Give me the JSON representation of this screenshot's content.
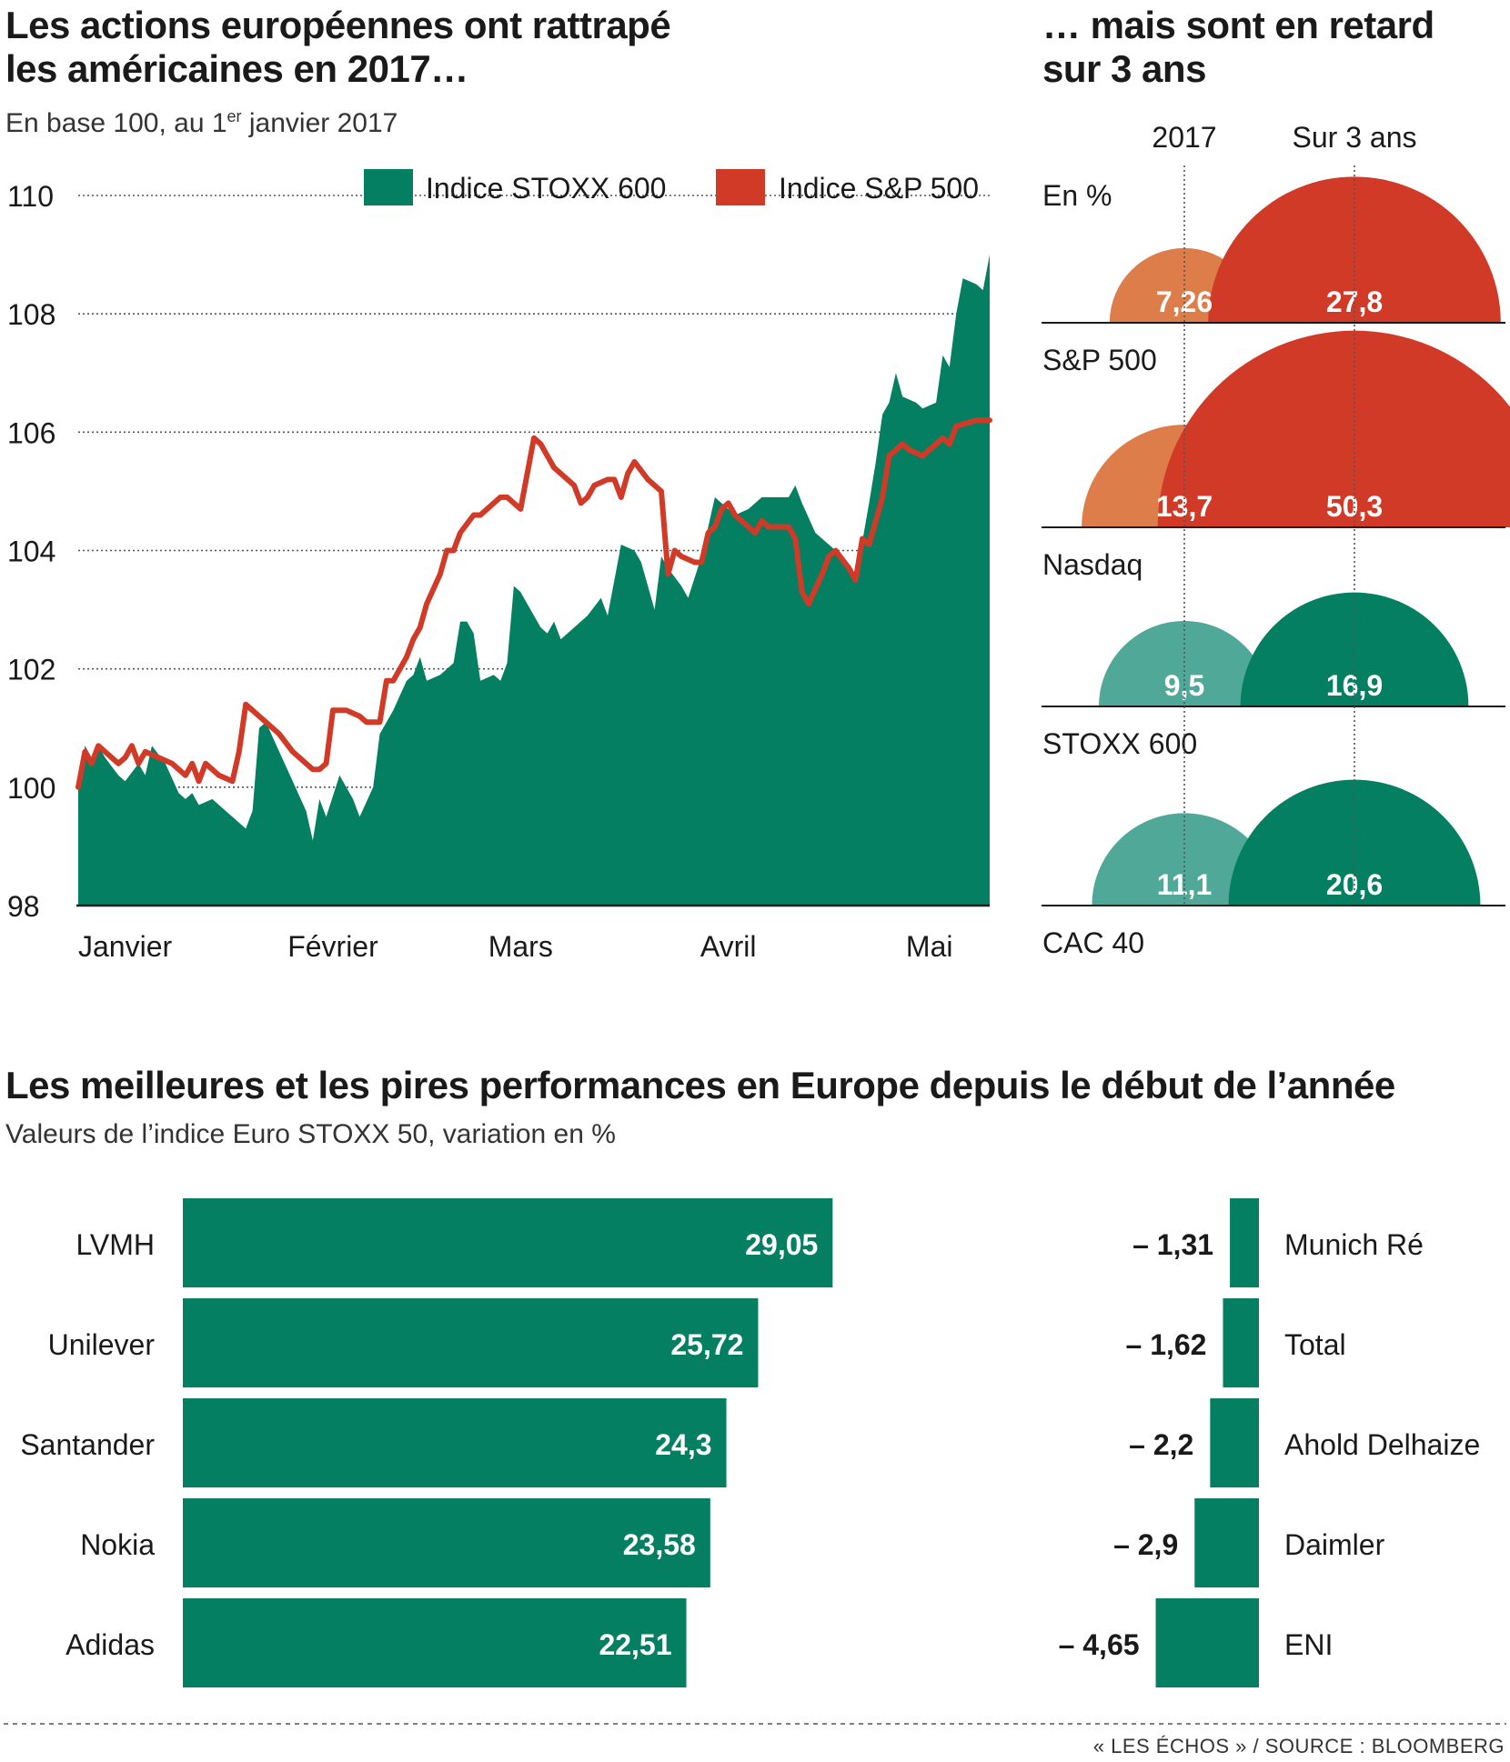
{
  "source": "« LES ÉCHOS » / SOURCE : BLOOMBERG",
  "colors": {
    "green": "#057f62",
    "red": "#d13a27",
    "orange": "#dc7d4a",
    "teal": "#4fa898",
    "axis": "#1a1a1a",
    "grid": "#555555"
  },
  "chart_data": [
    {
      "id": "line-chart",
      "type": "area",
      "title_line1": "Les actions européennes ont rattrapé",
      "title_line2": "les américaines en 2017…",
      "subtitle_a": "En base 100, au 1",
      "subtitle_sup": "er",
      "subtitle_b": " janvier 2017",
      "xlabel": "",
      "ylabel": "",
      "ylim": [
        98,
        110
      ],
      "yticks": [
        98,
        100,
        102,
        104,
        106,
        108,
        110
      ],
      "ytick_labels": [
        "98",
        "100",
        "102",
        "104",
        "106",
        "108",
        "110"
      ],
      "grid": true,
      "legend_position": "top-right",
      "x_labels": [
        {
          "label": "Janvier",
          "day": 8
        },
        {
          "label": "Février",
          "day": 39
        },
        {
          "label": "Mars",
          "day": 67
        },
        {
          "label": "Avril",
          "day": 98
        },
        {
          "label": "Mai",
          "day": 128
        }
      ],
      "series": [
        {
          "name": "Indice STOXX 600",
          "type": "area",
          "color": "#057f62",
          "points": [
            [
              1,
              100
            ],
            [
              2,
              100.7
            ],
            [
              3,
              100.5
            ],
            [
              4,
              100.7
            ],
            [
              5,
              100.5
            ],
            [
              7,
              100.2
            ],
            [
              8,
              100.1
            ],
            [
              10,
              100.4
            ],
            [
              11,
              100.2
            ],
            [
              12,
              100.7
            ],
            [
              14,
              100.4
            ],
            [
              16,
              99.9
            ],
            [
              17,
              99.8
            ],
            [
              18,
              99.9
            ],
            [
              19,
              99.7
            ],
            [
              21,
              99.8
            ],
            [
              24,
              99.5
            ],
            [
              26,
              99.3
            ],
            [
              27,
              99.6
            ],
            [
              28,
              101
            ],
            [
              29,
              101.1
            ],
            [
              31,
              100.6
            ],
            [
              33,
              100.1
            ],
            [
              35,
              99.6
            ],
            [
              36,
              99.1
            ],
            [
              37,
              99.8
            ],
            [
              38,
              99.5
            ],
            [
              40,
              100.2
            ],
            [
              42,
              99.8
            ],
            [
              43,
              99.5
            ],
            [
              45,
              100
            ],
            [
              46,
              100.9
            ],
            [
              48,
              101.3
            ],
            [
              50,
              101.8
            ],
            [
              51,
              101.9
            ],
            [
              52,
              102.2
            ],
            [
              53,
              101.8
            ],
            [
              55,
              101.9
            ],
            [
              57,
              102.1
            ],
            [
              58,
              102.8
            ],
            [
              59,
              102.8
            ],
            [
              60,
              102.6
            ],
            [
              61,
              101.8
            ],
            [
              63,
              101.9
            ],
            [
              64,
              101.8
            ],
            [
              65,
              102.1
            ],
            [
              66,
              103.4
            ],
            [
              67,
              103.3
            ],
            [
              68,
              103.1
            ],
            [
              70,
              102.7
            ],
            [
              71,
              102.6
            ],
            [
              72,
              102.8
            ],
            [
              73,
              102.5
            ],
            [
              75,
              102.7
            ],
            [
              77,
              102.9
            ],
            [
              79,
              103.2
            ],
            [
              80,
              102.9
            ],
            [
              81,
              103.5
            ],
            [
              82,
              104.1
            ],
            [
              84,
              104
            ],
            [
              85,
              103.8
            ],
            [
              87,
              103
            ],
            [
              88,
              103.9
            ],
            [
              89,
              103.7
            ],
            [
              91,
              103.4
            ],
            [
              92,
              103.2
            ],
            [
              94,
              103.9
            ],
            [
              96,
              104.9
            ],
            [
              97,
              104.8
            ],
            [
              99,
              104.6
            ],
            [
              101,
              104.7
            ],
            [
              103,
              104.9
            ],
            [
              105,
              104.9
            ],
            [
              107,
              104.9
            ],
            [
              108,
              105.1
            ],
            [
              109,
              104.8
            ],
            [
              111,
              104.3
            ],
            [
              113,
              104.1
            ],
            [
              115,
              103.9
            ],
            [
              116,
              103.7
            ],
            [
              117,
              103.5
            ],
            [
              119,
              104.8
            ],
            [
              120,
              105.5
            ],
            [
              121,
              106.3
            ],
            [
              122,
              106.5
            ],
            [
              123,
              107
            ],
            [
              124,
              106.6
            ],
            [
              126,
              106.5
            ],
            [
              127,
              106.4
            ],
            [
              129,
              106.5
            ],
            [
              130,
              107.3
            ],
            [
              131,
              107.1
            ],
            [
              132,
              108
            ],
            [
              133,
              108.6
            ],
            [
              135,
              108.5
            ],
            [
              136,
              108.4
            ],
            [
              137,
              109
            ]
          ]
        },
        {
          "name": "Indice S&P 500",
          "type": "line",
          "color": "#d13a27",
          "points": [
            [
              1,
              100
            ],
            [
              2,
              100.6
            ],
            [
              3,
              100.4
            ],
            [
              4,
              100.7
            ],
            [
              6,
              100.5
            ],
            [
              7,
              100.4
            ],
            [
              8,
              100.5
            ],
            [
              9,
              100.7
            ],
            [
              10,
              100.4
            ],
            [
              11,
              100.6
            ],
            [
              13,
              100.5
            ],
            [
              15,
              100.4
            ],
            [
              17,
              100.2
            ],
            [
              18,
              100.4
            ],
            [
              19,
              100.1
            ],
            [
              20,
              100.4
            ],
            [
              22,
              100.2
            ],
            [
              24,
              100.1
            ],
            [
              25,
              100.6
            ],
            [
              26,
              101.4
            ],
            [
              27,
              101.3
            ],
            [
              29,
              101.1
            ],
            [
              31,
              100.9
            ],
            [
              33,
              100.6
            ],
            [
              35,
              100.4
            ],
            [
              36,
              100.3
            ],
            [
              37,
              100.3
            ],
            [
              38,
              100.4
            ],
            [
              39,
              101.3
            ],
            [
              40,
              101.3
            ],
            [
              41,
              101.3
            ],
            [
              43,
              101.2
            ],
            [
              44,
              101.1
            ],
            [
              46,
              101.1
            ],
            [
              47,
              101.8
            ],
            [
              48,
              101.8
            ],
            [
              50,
              102.2
            ],
            [
              51,
              102.5
            ],
            [
              52,
              102.7
            ],
            [
              53,
              103.1
            ],
            [
              55,
              103.6
            ],
            [
              56,
              104
            ],
            [
              57,
              104
            ],
            [
              58,
              104.3
            ],
            [
              60,
              104.6
            ],
            [
              61,
              104.6
            ],
            [
              63,
              104.8
            ],
            [
              64,
              104.9
            ],
            [
              65,
              104.9
            ],
            [
              66,
              104.8
            ],
            [
              67,
              104.7
            ],
            [
              68,
              105.3
            ],
            [
              69,
              105.9
            ],
            [
              70,
              105.8
            ],
            [
              71,
              105.6
            ],
            [
              72,
              105.4
            ],
            [
              73,
              105.3
            ],
            [
              75,
              105.1
            ],
            [
              76,
              104.8
            ],
            [
              77,
              104.9
            ],
            [
              78,
              105.1
            ],
            [
              80,
              105.2
            ],
            [
              81,
              105.2
            ],
            [
              82,
              104.9
            ],
            [
              83,
              105.3
            ],
            [
              84,
              105.5
            ],
            [
              86,
              105.2
            ],
            [
              87,
              105.1
            ],
            [
              88,
              105
            ],
            [
              89,
              103.6
            ],
            [
              90,
              104
            ],
            [
              91,
              103.9
            ],
            [
              93,
              103.8
            ],
            [
              94,
              103.8
            ],
            [
              95,
              104.3
            ],
            [
              96,
              104.4
            ],
            [
              97,
              104.7
            ],
            [
              98,
              104.8
            ],
            [
              99,
              104.6
            ],
            [
              101,
              104.4
            ],
            [
              102,
              104.3
            ],
            [
              103,
              104.5
            ],
            [
              104,
              104.4
            ],
            [
              106,
              104.4
            ],
            [
              107,
              104.4
            ],
            [
              108,
              104.2
            ],
            [
              109,
              103.3
            ],
            [
              110,
              103.1
            ],
            [
              112,
              103.6
            ],
            [
              113,
              103.9
            ],
            [
              114,
              104
            ],
            [
              116,
              103.7
            ],
            [
              117,
              103.5
            ],
            [
              118,
              104.2
            ],
            [
              119,
              104.1
            ],
            [
              120,
              104.5
            ],
            [
              121,
              104.9
            ],
            [
              122,
              105.6
            ],
            [
              123,
              105.7
            ],
            [
              124,
              105.8
            ],
            [
              125,
              105.7
            ],
            [
              127,
              105.6
            ],
            [
              128,
              105.7
            ],
            [
              130,
              105.9
            ],
            [
              131,
              105.8
            ],
            [
              132,
              106.1
            ],
            [
              135,
              106.2
            ],
            [
              137,
              106.2
            ]
          ]
        }
      ]
    },
    {
      "id": "semicircles",
      "type": "bar",
      "title_line1": "… mais sont en retard",
      "title_line2": "sur 3 ans",
      "col_labels": [
        "2017",
        "Sur 3 ans"
      ],
      "unit_label": "En %",
      "rows": [
        {
          "name": "S&P 500",
          "v2017": 7.26,
          "label2017": "7,26",
          "v3": 27.8,
          "label3": "27,8",
          "color2017": "#dc7d4a",
          "color3": "#d13a27"
        },
        {
          "name": "Nasdaq",
          "v2017": 13.7,
          "label2017": "13,7",
          "v3": 50.3,
          "label3": "50,3",
          "color2017": "#dc7d4a",
          "color3": "#d13a27"
        },
        {
          "name": "STOXX 600",
          "v2017": 9.5,
          "label2017": "9,5",
          "v3": 16.9,
          "label3": "16,9",
          "color2017": "#4fa898",
          "color3": "#057f62"
        },
        {
          "name": "CAC 40",
          "v2017": 11.1,
          "label2017": "11,1",
          "v3": 20.6,
          "label3": "20,6",
          "color2017": "#4fa898",
          "color3": "#057f62"
        }
      ]
    },
    {
      "id": "best-worst",
      "type": "bar",
      "title": "Les meilleures et les pires performances en Europe depuis le début de l’année",
      "subtitle": "Valeurs de l’indice Euro STOXX 50, variation en %",
      "best": [
        {
          "name": "LVMH",
          "value": 29.05,
          "label": "29,05"
        },
        {
          "name": "Unilever",
          "value": 25.72,
          "label": "25,72"
        },
        {
          "name": "Santander",
          "value": 24.3,
          "label": "24,3"
        },
        {
          "name": "Nokia",
          "value": 23.58,
          "label": "23,58"
        },
        {
          "name": "Adidas",
          "value": 22.51,
          "label": "22,51"
        }
      ],
      "worst": [
        {
          "name": "Munich Ré",
          "value": -1.31,
          "label": "– 1,31"
        },
        {
          "name": "Total",
          "value": -1.62,
          "label": "– 1,62"
        },
        {
          "name": "Ahold Delhaize",
          "value": -2.2,
          "label": "– 2,2"
        },
        {
          "name": "Daimler",
          "value": -2.9,
          "label": "– 2,9"
        },
        {
          "name": "ENI",
          "value": -4.65,
          "label": "– 4,65"
        }
      ]
    }
  ]
}
